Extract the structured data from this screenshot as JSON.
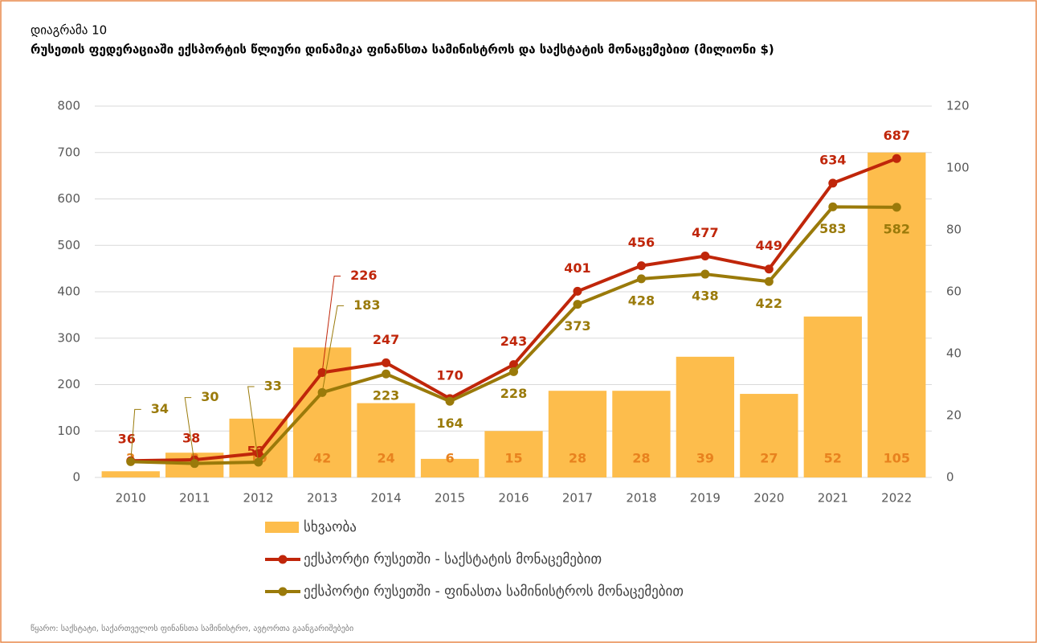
{
  "chart_data": {
    "type": "combo",
    "label": "დიაგრამა 10",
    "title": "რუსეთის ფედერაციაში ექსპორტის წლიური დინამიკა ფინანსთა სამინისტროს და საქსტატის მონაცემებით (მილიონი $)",
    "source": "წყარო: საქსტატი, საქართველოს ფინანსთა სამინისტრო, ავტორთა გაანგარიშებები",
    "categories": [
      "2010",
      "2011",
      "2012",
      "2013",
      "2014",
      "2015",
      "2016",
      "2017",
      "2018",
      "2019",
      "2020",
      "2021",
      "2022"
    ],
    "series": [
      {
        "name": "სხვაობა",
        "type": "bar",
        "axis": "y2",
        "color": "#fdbd4c",
        "label_color": "#e8821e",
        "values": [
          2,
          8,
          19,
          42,
          24,
          6,
          15,
          28,
          28,
          39,
          27,
          52,
          105
        ]
      },
      {
        "name": "ექსპორტი რუსეთში - საქსტატის მონაცემებით",
        "type": "line",
        "axis": "y",
        "color": "#c0260a",
        "values": [
          36,
          38,
          52,
          226,
          247,
          170,
          243,
          401,
          456,
          477,
          449,
          634,
          687
        ]
      },
      {
        "name": "ექსპორტი რუსეთში - ფინასთა სამინისტროს მონაცემებით",
        "type": "line",
        "axis": "y",
        "color": "#9a7a0a",
        "values": [
          34,
          30,
          33,
          183,
          223,
          164,
          228,
          373,
          428,
          438,
          422,
          583,
          582
        ]
      }
    ],
    "ylim": [
      0,
      800
    ],
    "yticks": [
      0,
      100,
      200,
      300,
      400,
      500,
      600,
      700,
      800
    ],
    "y2lim": [
      0,
      120
    ],
    "y2ticks": [
      0,
      20,
      40,
      60,
      80,
      100,
      120
    ],
    "grid": true,
    "legend": "bottom"
  }
}
